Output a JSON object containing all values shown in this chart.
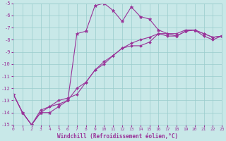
{
  "xlabel": "Windchill (Refroidissement éolien,°C)",
  "bg_color": "#c8e8e8",
  "line_color": "#993399",
  "grid_color": "#99cccc",
  "x_min": 0,
  "x_max": 23,
  "y_min": -15,
  "y_max": -5,
  "yticks": [
    -15,
    -14,
    -13,
    -12,
    -11,
    -10,
    -9,
    -8,
    -7,
    -6,
    -5
  ],
  "xticks": [
    0,
    1,
    2,
    3,
    4,
    5,
    6,
    7,
    8,
    9,
    10,
    11,
    12,
    13,
    14,
    15,
    16,
    17,
    18,
    19,
    20,
    21,
    22,
    23
  ],
  "line1_x": [
    0,
    1,
    2,
    3,
    4,
    5,
    6,
    7,
    8,
    9,
    10,
    11,
    12,
    13,
    14,
    15,
    16,
    17,
    18,
    19,
    20,
    21,
    22,
    23
  ],
  "line1_y": [
    -12.5,
    -14.0,
    -15.0,
    -14.0,
    -14.0,
    -13.5,
    -13.0,
    -7.5,
    -7.3,
    -5.2,
    -5.0,
    -5.6,
    -6.5,
    -5.3,
    -6.1,
    -6.3,
    -7.2,
    -7.5,
    -7.7,
    -7.3,
    -7.2,
    -7.5,
    -7.8,
    -7.7
  ],
  "line2_x": [
    0,
    1,
    2,
    3,
    4,
    5,
    6,
    7,
    8,
    9,
    10,
    11,
    12,
    13,
    14,
    15,
    16,
    17,
    18,
    19,
    20,
    21,
    22,
    23
  ],
  "line2_y": [
    -12.5,
    -14.0,
    -15.0,
    -14.0,
    -13.5,
    -13.0,
    -12.8,
    -12.5,
    -11.5,
    -10.5,
    -10.0,
    -9.3,
    -8.7,
    -8.5,
    -8.5,
    -8.2,
    -7.5,
    -7.7,
    -7.7,
    -7.3,
    -7.2,
    -7.5,
    -7.8,
    -7.7
  ],
  "line3_x": [
    0,
    1,
    2,
    3,
    4,
    5,
    6,
    7,
    8,
    9,
    10,
    11,
    12,
    13,
    14,
    15,
    16,
    17,
    18,
    19,
    20,
    21,
    22,
    23
  ],
  "line3_y": [
    -12.5,
    -14.0,
    -15.0,
    -13.8,
    -13.5,
    -13.3,
    -13.0,
    -12.0,
    -11.5,
    -10.5,
    -9.8,
    -9.3,
    -8.7,
    -8.3,
    -8.0,
    -7.8,
    -7.5,
    -7.5,
    -7.5,
    -7.2,
    -7.2,
    -7.7,
    -8.0,
    -7.7
  ]
}
